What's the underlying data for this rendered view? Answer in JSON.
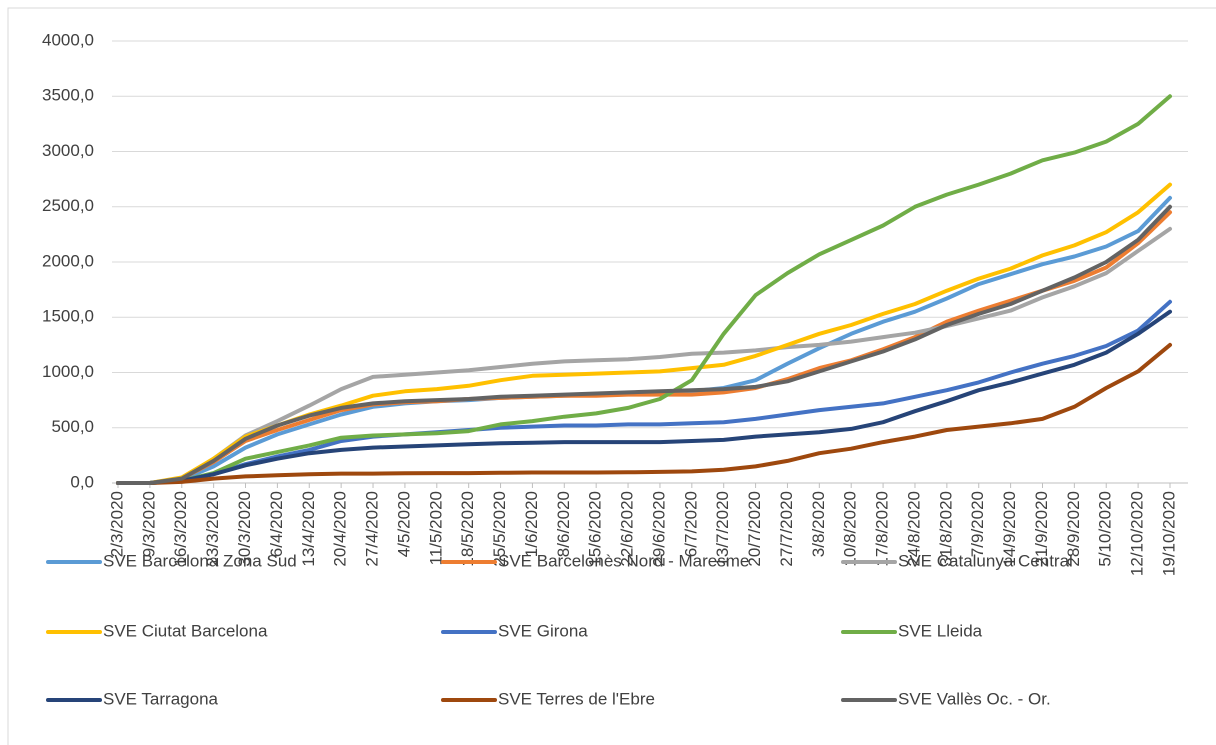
{
  "chart_data": {
    "type": "line",
    "categories": [
      "2/3/2020",
      "9/3/2020",
      "16/3/2020",
      "23/3/2020",
      "30/3/2020",
      "6/4/2020",
      "13/4/2020",
      "20/4/2020",
      "27/4/2020",
      "4/5/2020",
      "11/5/2020",
      "18/5/2020",
      "25/5/2020",
      "1/6/2020",
      "8/6/2020",
      "15/6/2020",
      "22/6/2020",
      "29/6/2020",
      "6/7/2020",
      "13/7/2020",
      "20/7/2020",
      "27/7/2020",
      "3/8/2020",
      "10/8/2020",
      "17/8/2020",
      "24/8/2020",
      "31/8/2020",
      "7/9/2020",
      "14/9/2020",
      "21/9/2020",
      "28/9/2020",
      "5/10/2020",
      "12/10/2020",
      "19/10/2020"
    ],
    "series": [
      {
        "name": "SVE  Barcelona Zona Sud",
        "color": "#5b9bd5",
        "values": [
          0,
          0,
          30,
          150,
          320,
          440,
          530,
          620,
          690,
          720,
          740,
          750,
          770,
          780,
          790,
          800,
          810,
          820,
          830,
          860,
          930,
          1080,
          1220,
          1350,
          1460,
          1550,
          1670,
          1800,
          1890,
          1980,
          2050,
          2140,
          2280,
          2580
        ]
      },
      {
        "name": "SVE Barcelonès Nord - Maresme",
        "color": "#ed7d31",
        "values": [
          0,
          0,
          40,
          190,
          380,
          480,
          570,
          660,
          710,
          730,
          740,
          760,
          770,
          780,
          790,
          790,
          800,
          800,
          800,
          820,
          860,
          940,
          1040,
          1110,
          1210,
          1320,
          1460,
          1560,
          1650,
          1740,
          1830,
          1950,
          2170,
          2450
        ]
      },
      {
        "name": "SVE Catalunya Central",
        "color": "#a5a5a5",
        "values": [
          0,
          0,
          40,
          220,
          430,
          560,
          700,
          850,
          960,
          980,
          1000,
          1020,
          1050,
          1080,
          1100,
          1110,
          1120,
          1140,
          1170,
          1180,
          1200,
          1230,
          1250,
          1280,
          1320,
          1360,
          1420,
          1490,
          1560,
          1680,
          1780,
          1900,
          2100,
          2300
        ]
      },
      {
        "name": "SVE Ciutat Barcelona",
        "color": "#ffc000",
        "values": [
          0,
          0,
          50,
          220,
          420,
          520,
          620,
          700,
          790,
          830,
          850,
          880,
          930,
          970,
          980,
          990,
          1000,
          1010,
          1040,
          1070,
          1150,
          1250,
          1350,
          1430,
          1530,
          1620,
          1740,
          1850,
          1940,
          2060,
          2150,
          2270,
          2450,
          2700
        ]
      },
      {
        "name": "SVE Girona",
        "color": "#4472c4",
        "values": [
          0,
          0,
          20,
          80,
          170,
          240,
          300,
          380,
          420,
          440,
          460,
          480,
          500,
          510,
          520,
          520,
          530,
          530,
          540,
          550,
          580,
          620,
          660,
          690,
          720,
          780,
          840,
          910,
          1000,
          1080,
          1150,
          1240,
          1380,
          1640
        ]
      },
      {
        "name": "SVE Lleida",
        "color": "#70ad47",
        "values": [
          0,
          0,
          20,
          90,
          220,
          280,
          340,
          410,
          430,
          440,
          450,
          470,
          530,
          560,
          600,
          630,
          680,
          760,
          930,
          1350,
          1700,
          1900,
          2070,
          2200,
          2330,
          2500,
          2610,
          2700,
          2800,
          2920,
          2990,
          3090,
          3250,
          3500
        ]
      },
      {
        "name": "SVE Tarragona",
        "color": "#264478",
        "values": [
          0,
          0,
          20,
          80,
          160,
          220,
          270,
          300,
          320,
          330,
          340,
          350,
          360,
          365,
          370,
          370,
          370,
          370,
          380,
          390,
          420,
          440,
          460,
          490,
          550,
          650,
          740,
          840,
          910,
          990,
          1070,
          1180,
          1350,
          1550
        ]
      },
      {
        "name": "SVE Terres de l'Ebre",
        "color": "#9e480e",
        "values": [
          0,
          0,
          10,
          40,
          60,
          70,
          80,
          85,
          85,
          88,
          90,
          90,
          92,
          95,
          95,
          95,
          97,
          100,
          105,
          120,
          150,
          200,
          270,
          310,
          370,
          420,
          480,
          510,
          540,
          580,
          690,
          860,
          1010,
          1250
        ]
      },
      {
        "name": "SVE Vallès Oc. - Or.",
        "color": "#636363",
        "values": [
          0,
          0,
          40,
          200,
          400,
          520,
          610,
          680,
          720,
          740,
          750,
          760,
          780,
          790,
          800,
          810,
          820,
          830,
          840,
          850,
          870,
          920,
          1010,
          1100,
          1190,
          1300,
          1430,
          1530,
          1620,
          1740,
          1860,
          2000,
          2200,
          2500
        ]
      }
    ],
    "ylim": [
      0,
      4000
    ],
    "yticks": [
      {
        "value": 0,
        "label": "0,0"
      },
      {
        "value": 500,
        "label": "500,0"
      },
      {
        "value": 1000,
        "label": "1000,0"
      },
      {
        "value": 1500,
        "label": "1500,0"
      },
      {
        "value": 2000,
        "label": "2000,0"
      },
      {
        "value": 2500,
        "label": "2500,0"
      },
      {
        "value": 3000,
        "label": "3000,0"
      },
      {
        "value": 3500,
        "label": "3500,0"
      },
      {
        "value": 4000,
        "label": "4000,0"
      }
    ],
    "grid": true
  }
}
